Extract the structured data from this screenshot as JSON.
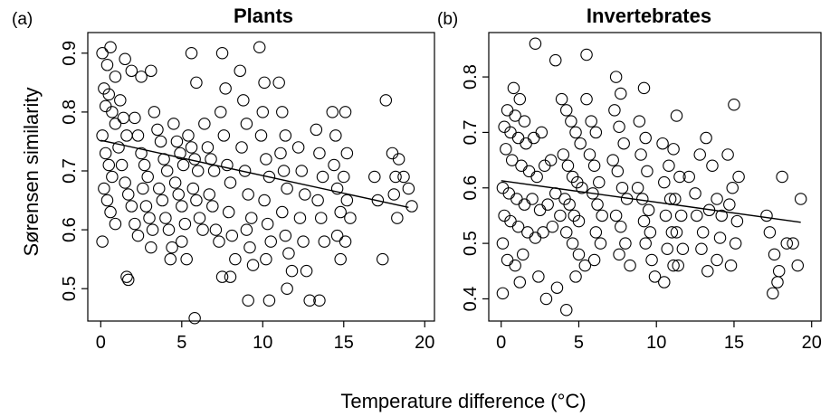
{
  "figure": {
    "ylabel": "Sørensen similarity",
    "xlabel": "Temperature difference (°C)"
  },
  "chart_data": [
    {
      "type": "scatter",
      "panel_tag": "(a)",
      "title": "Plants",
      "xlim": [
        -0.8,
        20.6
      ],
      "ylim": [
        0.445,
        0.935
      ],
      "x_ticks": [
        0,
        5,
        10,
        15,
        20
      ],
      "y_ticks": [
        0.5,
        0.6,
        0.7,
        0.8,
        0.9
      ],
      "y_tick_labels": [
        "0.5",
        "0.6",
        "0.7",
        "0.8",
        "0.9"
      ],
      "trend_line": {
        "x": [
          0,
          19
        ],
        "y": [
          0.752,
          0.638
        ]
      },
      "points": [
        [
          0.1,
          0.9
        ],
        [
          0.6,
          0.91
        ],
        [
          0.4,
          0.88
        ],
        [
          0.9,
          0.86
        ],
        [
          1.5,
          0.89
        ],
        [
          1.9,
          0.87
        ],
        [
          2.5,
          0.86
        ],
        [
          3.1,
          0.87
        ],
        [
          0.2,
          0.84
        ],
        [
          0.3,
          0.81
        ],
        [
          0.5,
          0.83
        ],
        [
          0.7,
          0.8
        ],
        [
          0.9,
          0.78
        ],
        [
          1.2,
          0.82
        ],
        [
          1.4,
          0.79
        ],
        [
          1.6,
          0.76
        ],
        [
          0.1,
          0.76
        ],
        [
          0.3,
          0.73
        ],
        [
          0.5,
          0.71
        ],
        [
          0.7,
          0.69
        ],
        [
          0.2,
          0.67
        ],
        [
          0.4,
          0.65
        ],
        [
          0.6,
          0.63
        ],
        [
          0.9,
          0.61
        ],
        [
          0.1,
          0.58
        ],
        [
          1.1,
          0.74
        ],
        [
          1.3,
          0.71
        ],
        [
          1.5,
          0.68
        ],
        [
          1.7,
          0.66
        ],
        [
          1.9,
          0.64
        ],
        [
          2.1,
          0.61
        ],
        [
          2.3,
          0.59
        ],
        [
          1.6,
          0.52
        ],
        [
          1.7,
          0.515
        ],
        [
          2.1,
          0.79
        ],
        [
          2.3,
          0.76
        ],
        [
          2.5,
          0.73
        ],
        [
          2.7,
          0.71
        ],
        [
          2.9,
          0.69
        ],
        [
          2.6,
          0.67
        ],
        [
          2.8,
          0.64
        ],
        [
          3.0,
          0.62
        ],
        [
          3.2,
          0.6
        ],
        [
          3.1,
          0.57
        ],
        [
          3.3,
          0.8
        ],
        [
          3.5,
          0.77
        ],
        [
          3.7,
          0.75
        ],
        [
          3.9,
          0.72
        ],
        [
          4.1,
          0.7
        ],
        [
          3.6,
          0.67
        ],
        [
          3.8,
          0.65
        ],
        [
          4.0,
          0.62
        ],
        [
          4.2,
          0.6
        ],
        [
          4.4,
          0.57
        ],
        [
          4.3,
          0.55
        ],
        [
          4.5,
          0.78
        ],
        [
          4.7,
          0.75
        ],
        [
          4.9,
          0.73
        ],
        [
          5.1,
          0.71
        ],
        [
          4.6,
          0.68
        ],
        [
          4.8,
          0.66
        ],
        [
          5.0,
          0.64
        ],
        [
          5.2,
          0.61
        ],
        [
          5.0,
          0.58
        ],
        [
          5.3,
          0.55
        ],
        [
          5.4,
          0.76
        ],
        [
          5.6,
          0.74
        ],
        [
          5.8,
          0.72
        ],
        [
          6.0,
          0.7
        ],
        [
          5.7,
          0.67
        ],
        [
          5.9,
          0.65
        ],
        [
          6.1,
          0.62
        ],
        [
          6.3,
          0.6
        ],
        [
          5.6,
          0.9
        ],
        [
          5.9,
          0.85
        ],
        [
          5.8,
          0.45
        ],
        [
          6.4,
          0.78
        ],
        [
          6.6,
          0.74
        ],
        [
          6.8,
          0.72
        ],
        [
          7.0,
          0.7
        ],
        [
          6.7,
          0.66
        ],
        [
          6.9,
          0.64
        ],
        [
          7.1,
          0.6
        ],
        [
          7.3,
          0.58
        ],
        [
          7.5,
          0.9
        ],
        [
          7.7,
          0.84
        ],
        [
          7.4,
          0.8
        ],
        [
          7.6,
          0.76
        ],
        [
          7.8,
          0.71
        ],
        [
          8.0,
          0.68
        ],
        [
          7.9,
          0.63
        ],
        [
          8.1,
          0.59
        ],
        [
          8.3,
          0.55
        ],
        [
          7.5,
          0.52
        ],
        [
          8.0,
          0.52
        ],
        [
          8.6,
          0.87
        ],
        [
          8.8,
          0.82
        ],
        [
          9.0,
          0.78
        ],
        [
          8.7,
          0.74
        ],
        [
          8.9,
          0.7
        ],
        [
          9.1,
          0.66
        ],
        [
          9.3,
          0.62
        ],
        [
          9.0,
          0.6
        ],
        [
          9.2,
          0.57
        ],
        [
          9.4,
          0.54
        ],
        [
          9.1,
          0.48
        ],
        [
          9.8,
          0.91
        ],
        [
          10.1,
          0.85
        ],
        [
          10.0,
          0.8
        ],
        [
          9.9,
          0.76
        ],
        [
          10.2,
          0.72
        ],
        [
          10.4,
          0.69
        ],
        [
          10.1,
          0.65
        ],
        [
          10.3,
          0.61
        ],
        [
          10.5,
          0.58
        ],
        [
          10.2,
          0.55
        ],
        [
          10.4,
          0.48
        ],
        [
          11.0,
          0.85
        ],
        [
          11.2,
          0.8
        ],
        [
          11.4,
          0.76
        ],
        [
          11.1,
          0.73
        ],
        [
          11.3,
          0.7
        ],
        [
          11.5,
          0.67
        ],
        [
          11.2,
          0.63
        ],
        [
          11.4,
          0.59
        ],
        [
          11.6,
          0.56
        ],
        [
          11.8,
          0.53
        ],
        [
          11.5,
          0.5
        ],
        [
          12.2,
          0.74
        ],
        [
          12.4,
          0.7
        ],
        [
          12.6,
          0.66
        ],
        [
          12.3,
          0.62
        ],
        [
          12.5,
          0.58
        ],
        [
          12.7,
          0.53
        ],
        [
          12.9,
          0.48
        ],
        [
          13.3,
          0.77
        ],
        [
          13.5,
          0.73
        ],
        [
          13.7,
          0.69
        ],
        [
          13.4,
          0.65
        ],
        [
          13.6,
          0.62
        ],
        [
          13.8,
          0.58
        ],
        [
          13.5,
          0.48
        ],
        [
          14.3,
          0.8
        ],
        [
          14.5,
          0.76
        ],
        [
          14.4,
          0.71
        ],
        [
          14.6,
          0.67
        ],
        [
          14.8,
          0.63
        ],
        [
          14.6,
          0.59
        ],
        [
          14.8,
          0.55
        ],
        [
          15.1,
          0.8
        ],
        [
          15.2,
          0.73
        ],
        [
          15.0,
          0.69
        ],
        [
          15.2,
          0.65
        ],
        [
          15.4,
          0.62
        ],
        [
          15.1,
          0.58
        ],
        [
          16.9,
          0.69
        ],
        [
          17.1,
          0.65
        ],
        [
          17.6,
          0.82
        ],
        [
          17.4,
          0.55
        ],
        [
          18.0,
          0.73
        ],
        [
          18.2,
          0.69
        ],
        [
          18.4,
          0.72
        ],
        [
          18.1,
          0.66
        ],
        [
          18.7,
          0.69
        ],
        [
          19.0,
          0.67
        ],
        [
          19.2,
          0.64
        ],
        [
          18.3,
          0.62
        ]
      ]
    },
    {
      "type": "scatter",
      "panel_tag": "(b)",
      "title": "Invertebrates",
      "xlim": [
        -0.8,
        20.6
      ],
      "ylim": [
        0.36,
        0.88
      ],
      "x_ticks": [
        0,
        5,
        10,
        15,
        20
      ],
      "y_ticks": [
        0.4,
        0.5,
        0.6,
        0.7,
        0.8
      ],
      "y_tick_labels": [
        "0.4",
        "0.5",
        "0.6",
        "0.7",
        "0.8"
      ],
      "trend_line": {
        "x": [
          0,
          19.3
        ],
        "y": [
          0.613,
          0.538
        ]
      },
      "points": [
        [
          2.2,
          0.86
        ],
        [
          5.5,
          0.84
        ],
        [
          3.5,
          0.83
        ],
        [
          0.8,
          0.78
        ],
        [
          1.2,
          0.76
        ],
        [
          0.4,
          0.74
        ],
        [
          0.9,
          0.73
        ],
        [
          1.5,
          0.72
        ],
        [
          0.2,
          0.71
        ],
        [
          0.6,
          0.7
        ],
        [
          1.1,
          0.69
        ],
        [
          1.6,
          0.68
        ],
        [
          2.1,
          0.69
        ],
        [
          2.6,
          0.7
        ],
        [
          0.3,
          0.67
        ],
        [
          0.7,
          0.65
        ],
        [
          1.3,
          0.64
        ],
        [
          1.8,
          0.63
        ],
        [
          2.3,
          0.62
        ],
        [
          2.8,
          0.64
        ],
        [
          3.2,
          0.65
        ],
        [
          0.1,
          0.6
        ],
        [
          0.5,
          0.59
        ],
        [
          1.0,
          0.58
        ],
        [
          1.5,
          0.57
        ],
        [
          2.0,
          0.58
        ],
        [
          2.5,
          0.56
        ],
        [
          3.0,
          0.57
        ],
        [
          3.5,
          0.59
        ],
        [
          0.2,
          0.55
        ],
        [
          0.6,
          0.54
        ],
        [
          1.1,
          0.53
        ],
        [
          1.7,
          0.52
        ],
        [
          2.2,
          0.51
        ],
        [
          2.7,
          0.52
        ],
        [
          3.3,
          0.53
        ],
        [
          3.8,
          0.55
        ],
        [
          0.1,
          0.5
        ],
        [
          0.4,
          0.47
        ],
        [
          0.9,
          0.46
        ],
        [
          1.4,
          0.48
        ],
        [
          0.1,
          0.41
        ],
        [
          1.2,
          0.43
        ],
        [
          2.4,
          0.44
        ],
        [
          3.6,
          0.42
        ],
        [
          4.2,
          0.38
        ],
        [
          2.9,
          0.4
        ],
        [
          3.9,
          0.76
        ],
        [
          4.2,
          0.74
        ],
        [
          4.5,
          0.72
        ],
        [
          4.8,
          0.7
        ],
        [
          5.1,
          0.68
        ],
        [
          4.0,
          0.66
        ],
        [
          4.3,
          0.64
        ],
        [
          4.6,
          0.62
        ],
        [
          4.9,
          0.61
        ],
        [
          5.2,
          0.6
        ],
        [
          4.1,
          0.58
        ],
        [
          4.4,
          0.57
        ],
        [
          4.7,
          0.55
        ],
        [
          5.0,
          0.54
        ],
        [
          4.2,
          0.52
        ],
        [
          4.6,
          0.5
        ],
        [
          5.0,
          0.48
        ],
        [
          5.4,
          0.46
        ],
        [
          4.8,
          0.44
        ],
        [
          5.5,
          0.76
        ],
        [
          5.8,
          0.72
        ],
        [
          6.1,
          0.7
        ],
        [
          5.7,
          0.66
        ],
        [
          6.0,
          0.64
        ],
        [
          6.3,
          0.61
        ],
        [
          5.9,
          0.59
        ],
        [
          6.2,
          0.57
        ],
        [
          6.5,
          0.55
        ],
        [
          6.1,
          0.52
        ],
        [
          6.4,
          0.5
        ],
        [
          6.0,
          0.47
        ],
        [
          7.4,
          0.8
        ],
        [
          7.7,
          0.77
        ],
        [
          7.3,
          0.74
        ],
        [
          7.6,
          0.71
        ],
        [
          7.9,
          0.68
        ],
        [
          7.2,
          0.65
        ],
        [
          7.5,
          0.63
        ],
        [
          7.8,
          0.6
        ],
        [
          8.1,
          0.58
        ],
        [
          7.4,
          0.55
        ],
        [
          7.7,
          0.53
        ],
        [
          8.0,
          0.5
        ],
        [
          7.6,
          0.48
        ],
        [
          8.3,
          0.46
        ],
        [
          9.2,
          0.78
        ],
        [
          8.9,
          0.72
        ],
        [
          9.3,
          0.69
        ],
        [
          9.0,
          0.66
        ],
        [
          9.4,
          0.63
        ],
        [
          8.8,
          0.6
        ],
        [
          9.1,
          0.58
        ],
        [
          9.5,
          0.56
        ],
        [
          9.2,
          0.54
        ],
        [
          9.6,
          0.52
        ],
        [
          9.3,
          0.5
        ],
        [
          9.7,
          0.47
        ],
        [
          9.9,
          0.44
        ],
        [
          10.4,
          0.68
        ],
        [
          10.8,
          0.64
        ],
        [
          10.5,
          0.61
        ],
        [
          10.9,
          0.58
        ],
        [
          10.6,
          0.55
        ],
        [
          11.0,
          0.52
        ],
        [
          10.7,
          0.49
        ],
        [
          11.1,
          0.46
        ],
        [
          10.5,
          0.43
        ],
        [
          11.3,
          0.73
        ],
        [
          11.1,
          0.67
        ],
        [
          11.5,
          0.62
        ],
        [
          11.2,
          0.58
        ],
        [
          11.6,
          0.55
        ],
        [
          11.3,
          0.52
        ],
        [
          11.7,
          0.49
        ],
        [
          11.4,
          0.46
        ],
        [
          12.1,
          0.62
        ],
        [
          12.5,
          0.59
        ],
        [
          12.8,
          0.66
        ],
        [
          13.2,
          0.69
        ],
        [
          12.6,
          0.55
        ],
        [
          13.0,
          0.52
        ],
        [
          12.9,
          0.49
        ],
        [
          13.4,
          0.56
        ],
        [
          13.3,
          0.45
        ],
        [
          13.6,
          0.64
        ],
        [
          13.9,
          0.58
        ],
        [
          14.2,
          0.55
        ],
        [
          14.1,
          0.51
        ],
        [
          13.9,
          0.47
        ],
        [
          14.6,
          0.66
        ],
        [
          15.0,
          0.75
        ],
        [
          14.9,
          0.6
        ],
        [
          14.7,
          0.57
        ],
        [
          15.2,
          0.54
        ],
        [
          15.1,
          0.5
        ],
        [
          14.8,
          0.46
        ],
        [
          15.3,
          0.62
        ],
        [
          17.1,
          0.55
        ],
        [
          17.3,
          0.52
        ],
        [
          17.6,
          0.48
        ],
        [
          17.9,
          0.45
        ],
        [
          17.5,
          0.41
        ],
        [
          17.8,
          0.43
        ],
        [
          18.1,
          0.62
        ],
        [
          18.4,
          0.5
        ],
        [
          18.8,
          0.5
        ],
        [
          19.1,
          0.46
        ],
        [
          19.3,
          0.58
        ]
      ]
    }
  ]
}
